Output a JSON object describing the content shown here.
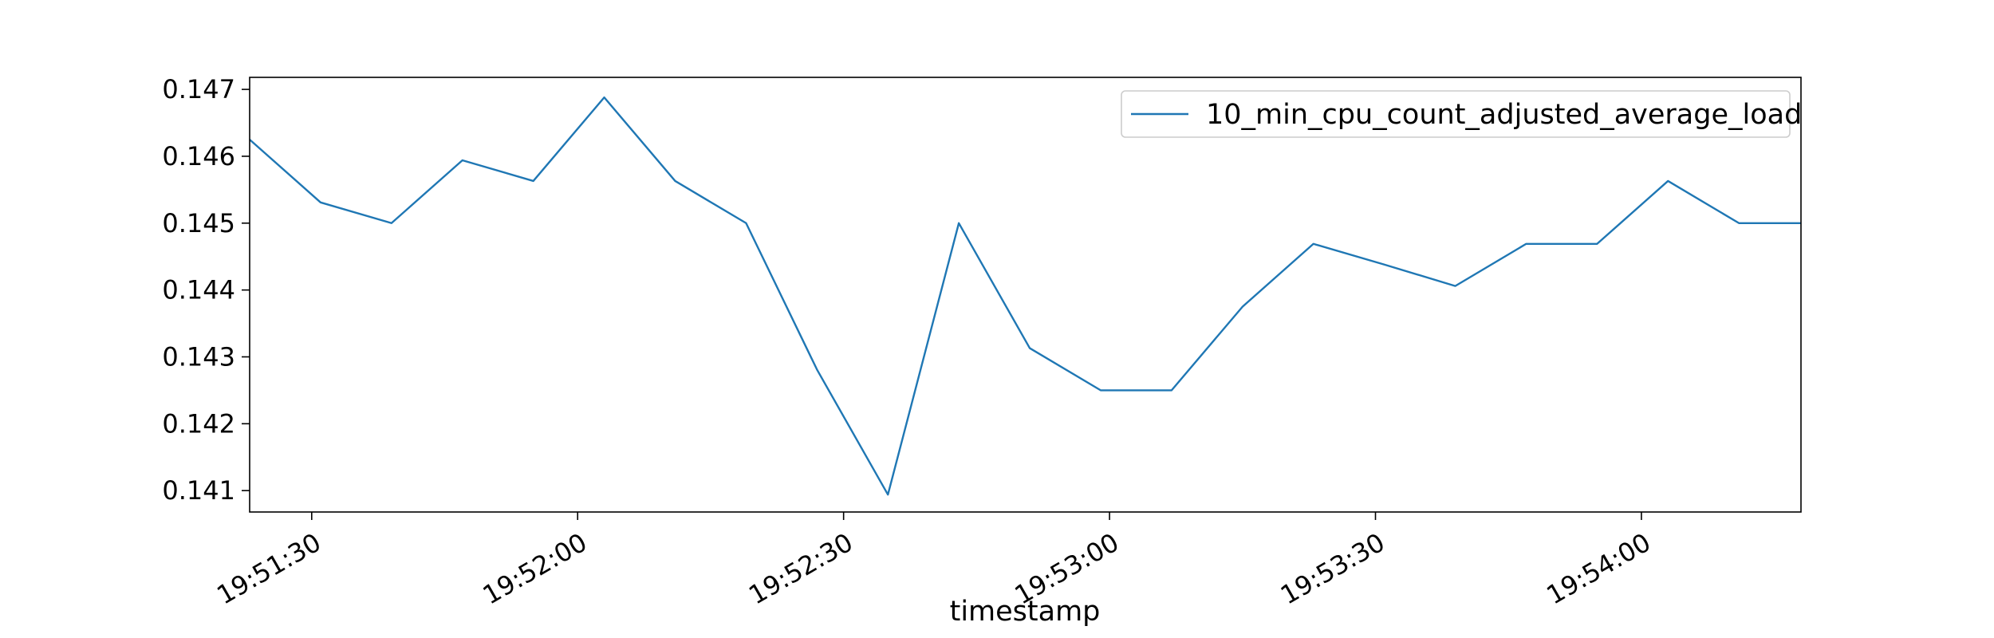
{
  "chart_data": {
    "type": "line",
    "title": "",
    "xlabel": "timestamp",
    "ylabel": "",
    "x_tick_labels": [
      "19:51:30",
      "19:52:00",
      "19:52:30",
      "19:53:00",
      "19:53:30",
      "19:54:00"
    ],
    "y_tick_labels": [
      "0.141",
      "0.142",
      "0.143",
      "0.144",
      "0.145",
      "0.146",
      "0.147"
    ],
    "xlim": [
      "19:51:23",
      "19:54:18"
    ],
    "ylim": [
      0.14068,
      0.14718
    ],
    "grid": false,
    "legend_position": "upper right",
    "series": [
      {
        "name": "10_min_cpu_count_adjusted_average_load",
        "color": "#1f77b4",
        "x": [
          "19:51:23",
          "19:51:31",
          "19:51:39",
          "19:51:47",
          "19:51:55",
          "19:52:03",
          "19:52:11",
          "19:52:19",
          "19:52:27",
          "19:52:35",
          "19:52:43",
          "19:52:51",
          "19:52:59",
          "19:53:07",
          "19:53:15",
          "19:53:23",
          "19:53:31",
          "19:53:39",
          "19:53:47",
          "19:53:55",
          "19:54:03",
          "19:54:11",
          "19:54:18"
        ],
        "values": [
          0.14625,
          0.14531,
          0.145,
          0.14594,
          0.14563,
          0.14688,
          0.14563,
          0.145,
          0.14281,
          0.14094,
          0.145,
          0.14313,
          0.1425,
          0.1425,
          0.14375,
          0.14469,
          0.14438,
          0.14406,
          0.14469,
          0.14469,
          0.14563,
          0.145,
          0.145
        ]
      }
    ]
  }
}
